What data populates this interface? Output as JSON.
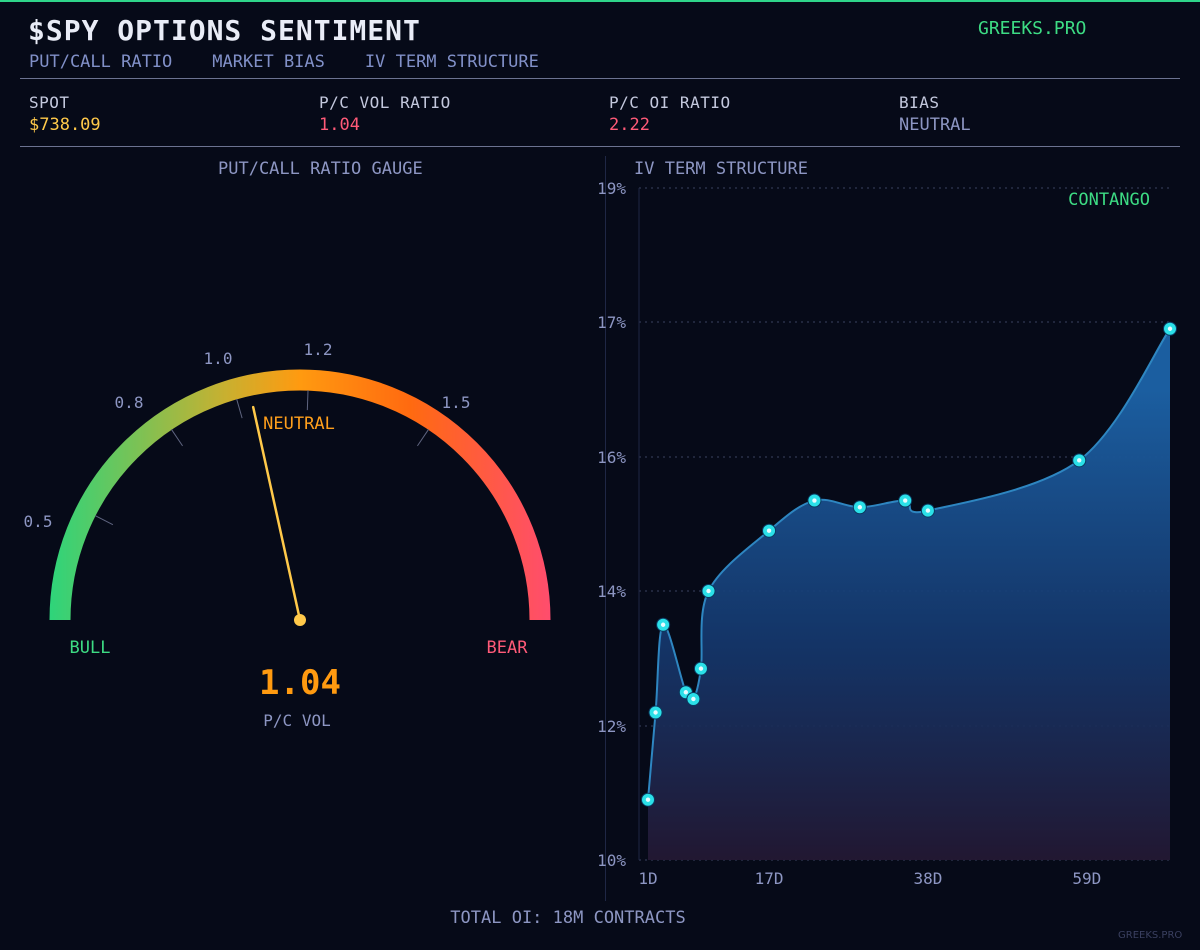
{
  "header": {
    "title": "$SPY  OPTIONS SENTIMENT",
    "brand": "GREEKS.PRO",
    "tabs": [
      "PUT/CALL RATIO",
      "MARKET BIAS",
      "IV TERM STRUCTURE"
    ]
  },
  "stats": [
    {
      "label": "SPOT",
      "value": "$738.09",
      "color": "#ffc94a"
    },
    {
      "label": "P/C VOL RATIO",
      "value": "1.04",
      "color": "#ff5a78"
    },
    {
      "label": "P/C OI RATIO",
      "value": "2.22",
      "color": "#ff5a78"
    },
    {
      "label": "BIAS",
      "value": "NEUTRAL",
      "color": "#8d96c3"
    }
  ],
  "gauge": {
    "title": "PUT/CALL RATIO GAUGE",
    "tick_labels": [
      "0.5",
      "0.8",
      "1.0",
      "1.2",
      "1.5"
    ],
    "zone_label": "NEUTRAL",
    "left_label": "BULL",
    "right_label": "BEAR",
    "value": 1.04,
    "value_text": "1.04",
    "value_caption": "P/C VOL"
  },
  "iv": {
    "title": "IV TERM STRUCTURE",
    "structure_label": "CONTANGO"
  },
  "chart_data": {
    "type": "area",
    "title": "IV TERM STRUCTURE",
    "annotation": "CONTANGO",
    "x_unit": "days to expiry",
    "x": [
      1,
      2,
      3,
      6,
      7,
      8,
      9,
      17,
      23,
      29,
      35,
      38,
      58,
      70
    ],
    "y": [
      10.9,
      12.2,
      13.5,
      12.5,
      12.4,
      12.85,
      14.0,
      14.9,
      15.35,
      15.25,
      15.35,
      15.2,
      15.95,
      16.95
    ],
    "xticks": [
      "1D",
      "17D",
      "38D",
      "59D"
    ],
    "xtick_values": [
      1,
      17,
      38,
      59
    ],
    "yticks": [
      "10%",
      "12%",
      "14%",
      "16%",
      "17%",
      "19%"
    ],
    "ytick_values": [
      10,
      12,
      14,
      16,
      17,
      19
    ],
    "ylim": [
      10,
      19
    ],
    "grid": true
  },
  "footer": {
    "total_oi": "TOTAL OI: 18M CONTRACTS",
    "watermark": "GREEKS.PRO"
  },
  "colors": {
    "bull": "#3ddc84",
    "bear": "#ff4d6d",
    "neutral": "#ff9f1c",
    "needle": "#ffc94a",
    "line": "#2e86c1",
    "point": "#2be0e8"
  }
}
